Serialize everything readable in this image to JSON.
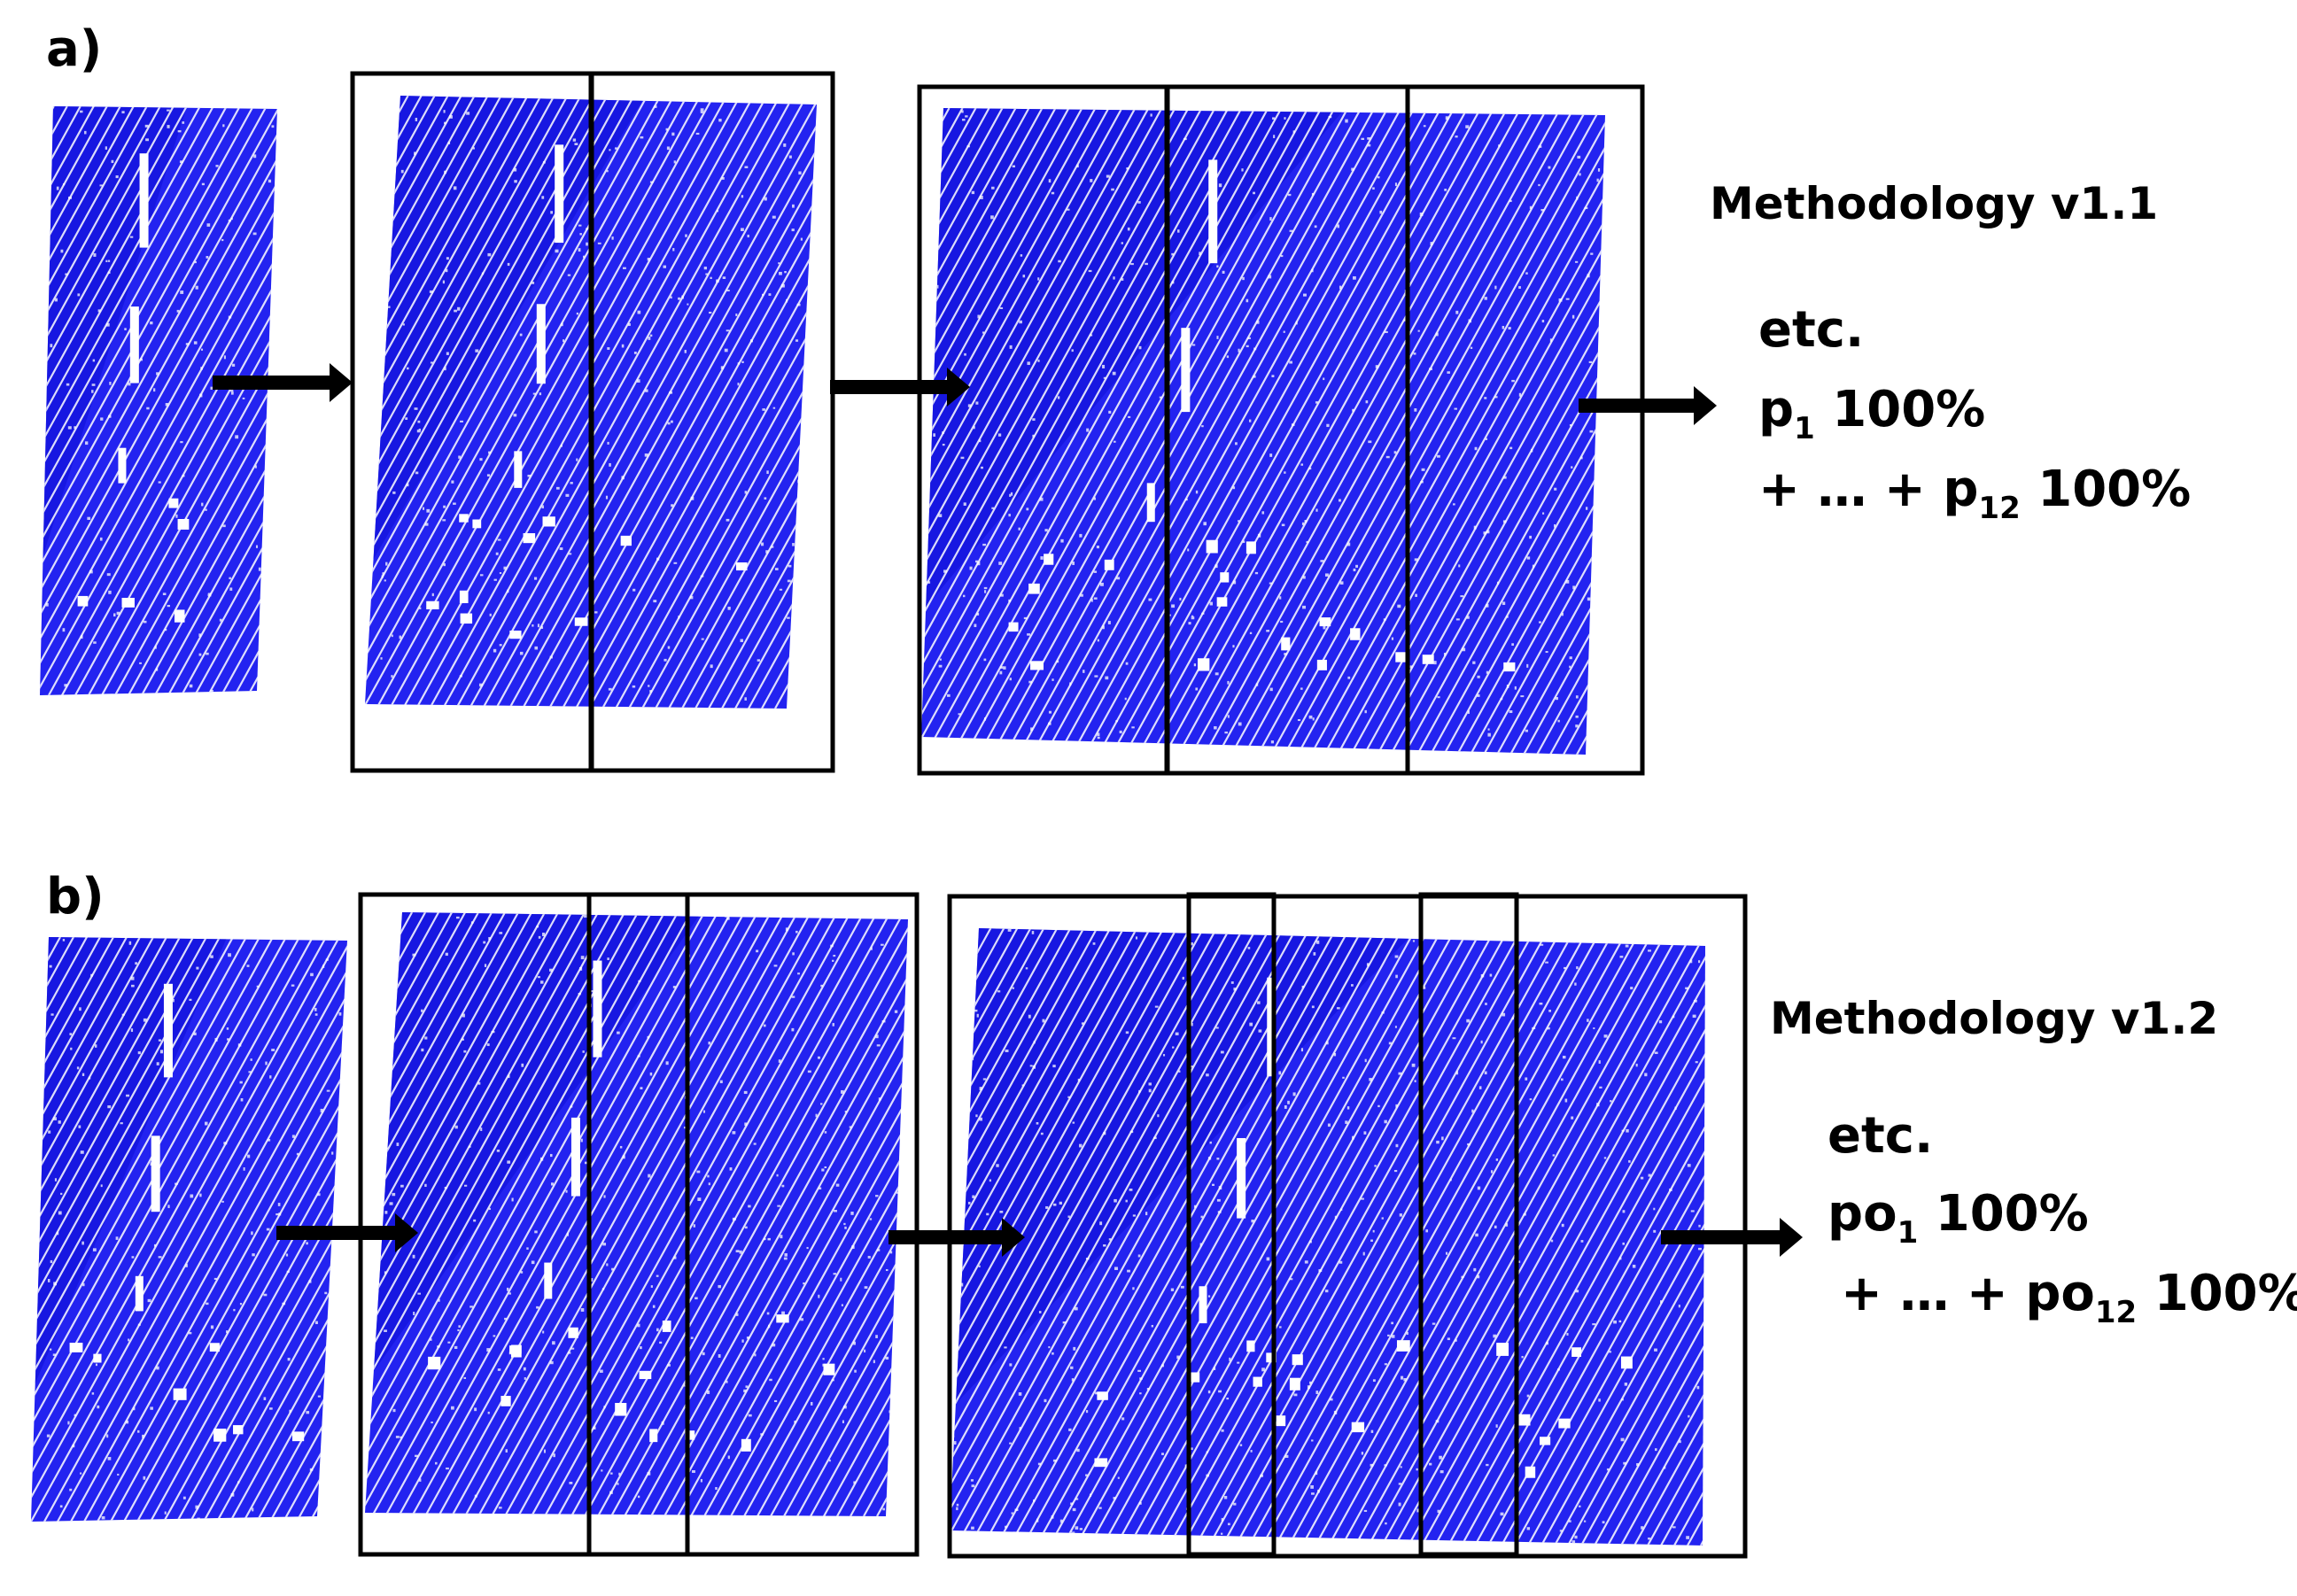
{
  "panels": [
    {
      "label": "a)",
      "methodology": "Methodology v1.1",
      "etc": "etc.",
      "line1": {
        "prefix": "p",
        "sub": "1",
        "suffix": " 100%"
      },
      "line2": {
        "prefix": "+ … + p",
        "sub": "12",
        "suffix": " 100%"
      }
    },
    {
      "label": "b)",
      "methodology": "Methodology v1.2",
      "etc": "etc.",
      "line1": {
        "prefix": "po",
        "sub": "1",
        "suffix": " 100%"
      },
      "line2": {
        "prefix": "+ … + po",
        "sub": "12",
        "suffix": " 100%"
      }
    }
  ],
  "colors": {
    "point_cloud": "#2323f0",
    "point_cloud_dark": "#0f0fd6",
    "gaps": "#ffffff",
    "frames": "#000000",
    "arrows": "#000000"
  }
}
